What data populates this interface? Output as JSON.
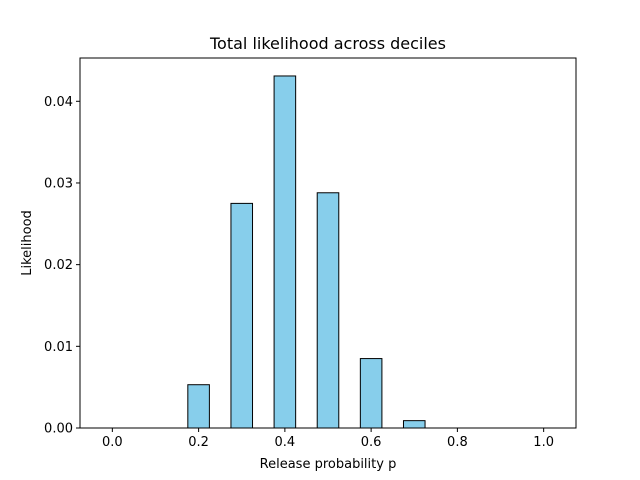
{
  "chart_data": {
    "type": "bar",
    "title": "Total likelihood across deciles",
    "xlabel": "Release probability p",
    "ylabel": "Likelihood",
    "x": [
      0.0,
      0.1,
      0.2,
      0.3,
      0.4,
      0.5,
      0.6,
      0.7,
      0.8,
      0.9,
      1.0
    ],
    "values": [
      0.0,
      0.0,
      0.0053,
      0.0275,
      0.0431,
      0.0288,
      0.0085,
      0.0009,
      0.0,
      0.0,
      0.0
    ],
    "bar_width": 0.05,
    "xlim": [
      -0.075,
      1.075
    ],
    "ylim": [
      0.0,
      0.0453
    ],
    "xticks": [
      0.0,
      0.2,
      0.4,
      0.6,
      0.8,
      1.0
    ],
    "xtick_labels": [
      "0.0",
      "0.2",
      "0.4",
      "0.6",
      "0.8",
      "1.0"
    ],
    "yticks": [
      0.0,
      0.01,
      0.02,
      0.03,
      0.04
    ],
    "ytick_labels": [
      "0.00",
      "0.01",
      "0.02",
      "0.03",
      "0.04"
    ],
    "grid": false,
    "bar_color": "#87ceeb",
    "edge_color": "#000000"
  }
}
